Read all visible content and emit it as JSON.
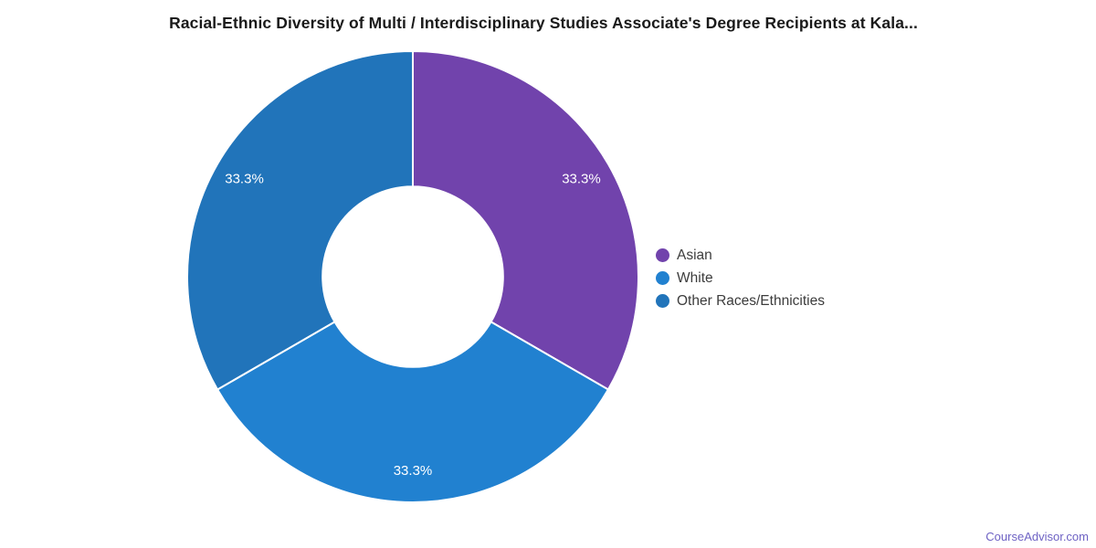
{
  "title": "Racial-Ethnic Diversity of Multi / Interdisciplinary Studies Associate's Degree Recipients at Kala...",
  "watermark": "CourseAdvisor.com",
  "colors": {
    "asian": "#7143ac",
    "white": "#2181d0",
    "other": "#2174ba",
    "slice_label_text": "#ffffff",
    "title_text": "#1a1a1a",
    "legend_text": "#3c3c3c",
    "watermark_text": "#6e62c4"
  },
  "chart_data": {
    "type": "pie",
    "subtype": "donut",
    "title": "Racial-Ethnic Diversity of Multi / Interdisciplinary Studies Associate's Degree Recipients at Kala...",
    "categories": [
      "Asian",
      "White",
      "Other Races/Ethnicities"
    ],
    "values": [
      33.3,
      33.3,
      33.3
    ],
    "slice_labels": [
      "33.3%",
      "33.3%",
      "33.3%"
    ],
    "colors": [
      "#7143ac",
      "#2181d0",
      "#2174ba"
    ],
    "inner_radius_ratio": 0.4,
    "start_angle_deg": 0,
    "direction": "clockwise",
    "legend_position": "right"
  },
  "legend": {
    "items": [
      {
        "label": "Asian",
        "color": "#7143ac"
      },
      {
        "label": "White",
        "color": "#2181d0"
      },
      {
        "label": "Other Races/Ethnicities",
        "color": "#2174ba"
      }
    ]
  }
}
